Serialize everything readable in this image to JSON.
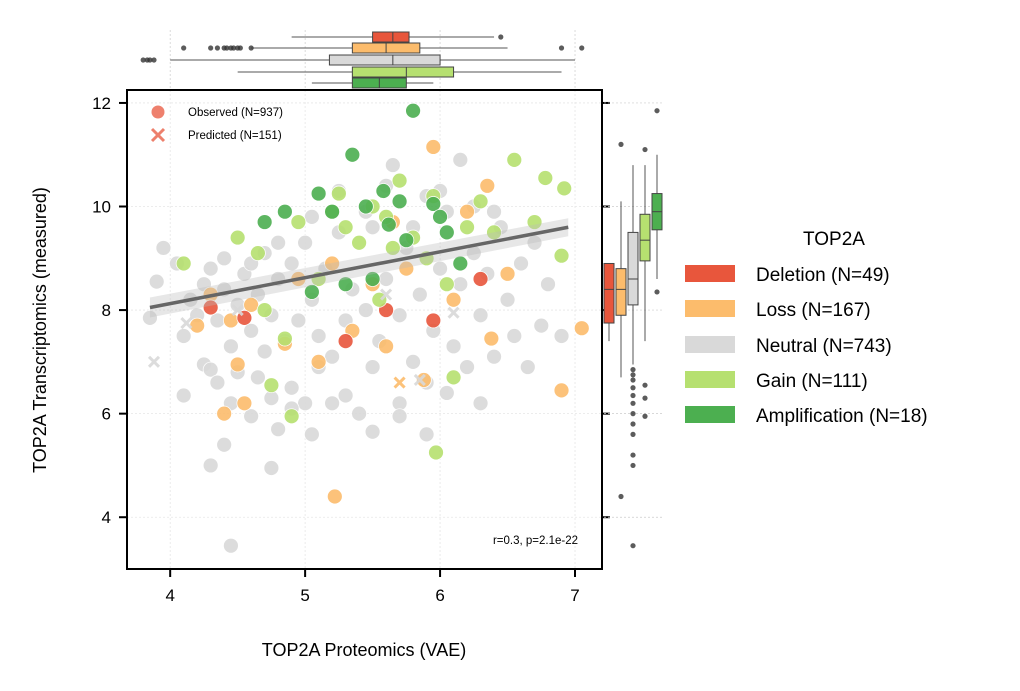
{
  "chart_data": {
    "type": "scatter",
    "xlabel": "TOP2A Proteomics (VAE)",
    "ylabel": "TOP2A Transcriptomics (measured)",
    "xlim": [
      3.68,
      7.2
    ],
    "ylim": [
      3.0,
      12.25
    ],
    "xticks": [
      "4",
      "5",
      "6",
      "7"
    ],
    "yticks": [
      "4",
      "6",
      "8",
      "10",
      "12"
    ],
    "grid": true,
    "marker_legend": [
      {
        "label": "Observed (N=937)",
        "marker": "circle"
      },
      {
        "label": "Predicted (N=151)",
        "marker": "x"
      }
    ],
    "annotation": "r=0.3, p=2.1e-22",
    "regression": {
      "x": [
        3.85,
        6.95
      ],
      "y": [
        8.05,
        9.6
      ],
      "color": "#666666"
    },
    "legend": {
      "title": "TOP2A",
      "placement": "right",
      "entries": [
        {
          "label": "Deletion (N=49)",
          "color": "#e8563c"
        },
        {
          "label": "Loss (N=167)",
          "color": "#fcbc6c"
        },
        {
          "label": "Neutral (N=743)",
          "color": "#d9d9d9"
        },
        {
          "label": "Gain (N=111)",
          "color": "#b6e070"
        },
        {
          "label": "Amplification (N=18)",
          "color": "#4caf50"
        }
      ]
    },
    "series": [
      {
        "key": "neutral",
        "color": "#d9d9d9",
        "points": [
          [
            3.85,
            7.85
          ],
          [
            3.9,
            8.55
          ],
          [
            3.95,
            9.2
          ],
          [
            4.05,
            8.9
          ],
          [
            4.1,
            7.5
          ],
          [
            4.1,
            6.35
          ],
          [
            4.15,
            8.2
          ],
          [
            4.2,
            7.9
          ],
          [
            4.25,
            8.5
          ],
          [
            4.25,
            6.95
          ],
          [
            4.3,
            8.8
          ],
          [
            4.3,
            6.85
          ],
          [
            4.35,
            7.8
          ],
          [
            4.35,
            6.6
          ],
          [
            4.4,
            8.4
          ],
          [
            4.4,
            9.0
          ],
          [
            4.45,
            7.3
          ],
          [
            4.45,
            6.2
          ],
          [
            4.5,
            8.1
          ],
          [
            4.5,
            6.8
          ],
          [
            4.55,
            8.7
          ],
          [
            4.6,
            7.6
          ],
          [
            4.6,
            5.95
          ],
          [
            4.65,
            8.3
          ],
          [
            4.65,
            6.7
          ],
          [
            4.7,
            9.1
          ],
          [
            4.7,
            7.2
          ],
          [
            4.75,
            7.9
          ],
          [
            4.75,
            6.3
          ],
          [
            4.8,
            8.6
          ],
          [
            4.8,
            5.7
          ],
          [
            4.85,
            7.4
          ],
          [
            4.9,
            8.9
          ],
          [
            4.9,
            6.5
          ],
          [
            4.95,
            7.8
          ],
          [
            5.0,
            9.3
          ],
          [
            5.0,
            6.2
          ],
          [
            5.05,
            8.2
          ],
          [
            5.1,
            7.5
          ],
          [
            5.1,
            6.9
          ],
          [
            5.15,
            8.8
          ],
          [
            5.2,
            7.1
          ],
          [
            5.2,
            6.2
          ],
          [
            5.25,
            9.5
          ],
          [
            5.3,
            7.8
          ],
          [
            5.35,
            8.4
          ],
          [
            5.4,
            6.0
          ],
          [
            5.45,
            8.0
          ],
          [
            5.5,
            9.6
          ],
          [
            5.5,
            6.9
          ],
          [
            5.55,
            7.4
          ],
          [
            5.6,
            8.6
          ],
          [
            5.65,
            10.8
          ],
          [
            5.7,
            7.9
          ],
          [
            5.7,
            6.2
          ],
          [
            5.75,
            9.2
          ],
          [
            5.8,
            7.0
          ],
          [
            5.85,
            8.3
          ],
          [
            5.9,
            10.2
          ],
          [
            5.9,
            6.6
          ],
          [
            5.95,
            7.6
          ],
          [
            6.0,
            8.8
          ],
          [
            6.05,
            9.9
          ],
          [
            6.1,
            7.3
          ],
          [
            6.15,
            8.5
          ],
          [
            6.15,
            10.9
          ],
          [
            6.2,
            6.9
          ],
          [
            6.25,
            9.1
          ],
          [
            6.3,
            7.9
          ],
          [
            6.3,
            6.2
          ],
          [
            6.35,
            8.7
          ],
          [
            6.4,
            7.1
          ],
          [
            6.45,
            9.6
          ],
          [
            6.5,
            8.2
          ],
          [
            6.55,
            7.5
          ],
          [
            6.6,
            8.9
          ],
          [
            6.65,
            6.9
          ],
          [
            6.7,
            9.3
          ],
          [
            6.75,
            7.7
          ],
          [
            6.8,
            8.5
          ],
          [
            6.9,
            7.5
          ],
          [
            4.6,
            8.9
          ],
          [
            4.8,
            9.3
          ],
          [
            5.05,
            9.8
          ],
          [
            5.25,
            10.3
          ],
          [
            5.45,
            9.9
          ],
          [
            5.6,
            10.4
          ],
          [
            5.8,
            9.6
          ],
          [
            6.0,
            10.3
          ],
          [
            6.25,
            10.0
          ],
          [
            6.4,
            9.9
          ],
          [
            4.3,
            5.0
          ],
          [
            4.75,
            4.95
          ],
          [
            4.45,
            3.45
          ],
          [
            5.5,
            5.65
          ],
          [
            5.3,
            6.35
          ],
          [
            5.7,
            5.95
          ],
          [
            6.05,
            6.4
          ],
          [
            5.9,
            5.6
          ],
          [
            5.05,
            5.6
          ],
          [
            4.9,
            6.1
          ],
          [
            4.4,
            5.4
          ]
        ]
      },
      {
        "key": "loss",
        "color": "#fcbc6c",
        "points": [
          [
            4.2,
            7.7
          ],
          [
            4.3,
            8.3
          ],
          [
            4.45,
            7.8
          ],
          [
            4.5,
            6.95
          ],
          [
            4.4,
            6.0
          ],
          [
            4.6,
            8.1
          ],
          [
            4.85,
            7.35
          ],
          [
            4.95,
            8.6
          ],
          [
            5.1,
            7.0
          ],
          [
            5.2,
            8.9
          ],
          [
            5.22,
            4.4
          ],
          [
            5.35,
            7.6
          ],
          [
            5.5,
            8.5
          ],
          [
            5.6,
            7.3
          ],
          [
            5.75,
            8.8
          ],
          [
            5.88,
            6.65
          ],
          [
            5.95,
            11.15
          ],
          [
            6.1,
            8.2
          ],
          [
            6.35,
            10.4
          ],
          [
            6.38,
            7.45
          ],
          [
            6.5,
            8.7
          ],
          [
            6.9,
            6.45
          ],
          [
            7.05,
            7.65
          ],
          [
            4.55,
            6.2
          ],
          [
            5.65,
            9.7
          ],
          [
            6.2,
            9.9
          ]
        ]
      },
      {
        "key": "deletion",
        "color": "#e8563c",
        "points": [
          [
            4.3,
            8.05
          ],
          [
            4.55,
            7.85
          ],
          [
            5.3,
            7.4
          ],
          [
            5.95,
            7.8
          ],
          [
            6.3,
            8.6
          ],
          [
            5.6,
            8.0
          ]
        ]
      },
      {
        "key": "gain",
        "color": "#b6e070",
        "points": [
          [
            4.1,
            8.9
          ],
          [
            4.5,
            9.4
          ],
          [
            4.7,
            8.0
          ],
          [
            4.75,
            6.55
          ],
          [
            4.85,
            7.45
          ],
          [
            4.9,
            5.95
          ],
          [
            4.95,
            9.7
          ],
          [
            5.1,
            8.6
          ],
          [
            5.2,
            9.9
          ],
          [
            5.25,
            10.25
          ],
          [
            5.4,
            9.3
          ],
          [
            5.5,
            10.0
          ],
          [
            5.55,
            8.2
          ],
          [
            5.6,
            9.8
          ],
          [
            5.7,
            10.5
          ],
          [
            5.8,
            9.4
          ],
          [
            5.9,
            9.0
          ],
          [
            5.95,
            10.2
          ],
          [
            5.97,
            5.25
          ],
          [
            6.05,
            8.5
          ],
          [
            6.1,
            6.7
          ],
          [
            6.2,
            9.6
          ],
          [
            6.3,
            10.1
          ],
          [
            6.4,
            9.5
          ],
          [
            6.55,
            10.9
          ],
          [
            6.7,
            9.7
          ],
          [
            6.78,
            10.55
          ],
          [
            6.92,
            10.35
          ],
          [
            6.9,
            9.05
          ],
          [
            5.3,
            9.6
          ],
          [
            5.65,
            9.2
          ],
          [
            4.65,
            9.1
          ]
        ]
      },
      {
        "key": "amplification",
        "color": "#4caf50",
        "points": [
          [
            4.7,
            9.7
          ],
          [
            5.05,
            8.35
          ],
          [
            5.1,
            10.25
          ],
          [
            5.2,
            9.9
          ],
          [
            5.3,
            8.5
          ],
          [
            5.35,
            11.0
          ],
          [
            5.45,
            10.0
          ],
          [
            5.5,
            8.6
          ],
          [
            5.58,
            10.3
          ],
          [
            5.75,
            9.35
          ],
          [
            5.8,
            11.85
          ],
          [
            5.95,
            10.05
          ],
          [
            6.0,
            9.8
          ],
          [
            6.15,
            8.9
          ],
          [
            5.62,
            9.65
          ],
          [
            4.85,
            9.9
          ],
          [
            5.7,
            10.1
          ],
          [
            6.05,
            9.5
          ]
        ]
      },
      {
        "key": "predicted",
        "color": "#d9d9d9",
        "marker": "x",
        "points": [
          [
            3.88,
            7.0
          ],
          [
            4.12,
            7.75
          ],
          [
            4.5,
            8.0
          ],
          [
            5.6,
            8.3
          ],
          [
            5.85,
            6.65
          ],
          [
            6.1,
            7.95
          ]
        ]
      },
      {
        "key": "predicted-loss",
        "color": "#fcbc6c",
        "marker": "x",
        "points": [
          [
            5.7,
            6.6
          ]
        ]
      }
    ],
    "marginal_top": {
      "note": "horizontal boxplots of x by group",
      "boxes": [
        {
          "key": "deletion",
          "color": "#e8563c",
          "q1": 5.5,
          "median": 5.65,
          "q3": 5.77,
          "whisker": [
            4.9,
            6.4
          ],
          "fliers": [
            6.45
          ]
        },
        {
          "key": "loss",
          "color": "#fcbc6c",
          "q1": 5.35,
          "median": 5.6,
          "q3": 5.85,
          "whisker": [
            4.6,
            6.5
          ],
          "fliers": [
            4.3,
            4.35,
            4.4,
            4.42,
            4.45,
            4.47,
            4.5,
            4.52,
            4.1,
            4.6,
            6.9,
            7.05
          ]
        },
        {
          "key": "neutral",
          "color": "#d9d9d9",
          "q1": 5.18,
          "median": 5.65,
          "q3": 6.0,
          "whisker": [
            4.0,
            7.0
          ],
          "fliers": [
            3.8,
            3.83,
            3.85,
            3.88
          ]
        },
        {
          "key": "gain",
          "color": "#b6e070",
          "q1": 5.35,
          "median": 5.75,
          "q3": 6.1,
          "whisker": [
            4.5,
            6.9
          ],
          "fliers": []
        },
        {
          "key": "amplification",
          "color": "#4caf50",
          "q1": 5.35,
          "median": 5.55,
          "q3": 5.75,
          "whisker": [
            5.05,
            5.95
          ],
          "fliers": []
        }
      ]
    },
    "marginal_right": {
      "note": "vertical boxplots of y by group",
      "boxes": [
        {
          "key": "deletion",
          "color": "#e8563c",
          "q1": 7.75,
          "median": 8.4,
          "q3": 8.9,
          "whisker": [
            7.4,
            8.9
          ],
          "fliers": []
        },
        {
          "key": "loss",
          "color": "#fcbc6c",
          "q1": 7.9,
          "median": 8.4,
          "q3": 8.8,
          "whisker": [
            6.7,
            10.1
          ],
          "fliers": [
            11.2,
            4.4
          ]
        },
        {
          "key": "neutral",
          "color": "#d9d9d9",
          "q1": 8.1,
          "median": 8.6,
          "q3": 9.5,
          "whisker": [
            6.95,
            10.8
          ],
          "fliers": [
            6.85,
            6.75,
            6.65,
            6.5,
            6.35,
            6.2,
            6.0,
            5.8,
            5.6,
            5.2,
            5.0,
            3.45
          ]
        },
        {
          "key": "gain",
          "color": "#b6e070",
          "q1": 8.95,
          "median": 9.35,
          "q3": 9.85,
          "whisker": [
            7.4,
            10.8
          ],
          "fliers": [
            6.55,
            6.3,
            5.95,
            11.1
          ]
        },
        {
          "key": "amplification",
          "color": "#4caf50",
          "q1": 9.55,
          "median": 9.9,
          "q3": 10.25,
          "whisker": [
            8.6,
            11.0
          ],
          "fliers": [
            11.85,
            8.35
          ]
        }
      ]
    }
  }
}
